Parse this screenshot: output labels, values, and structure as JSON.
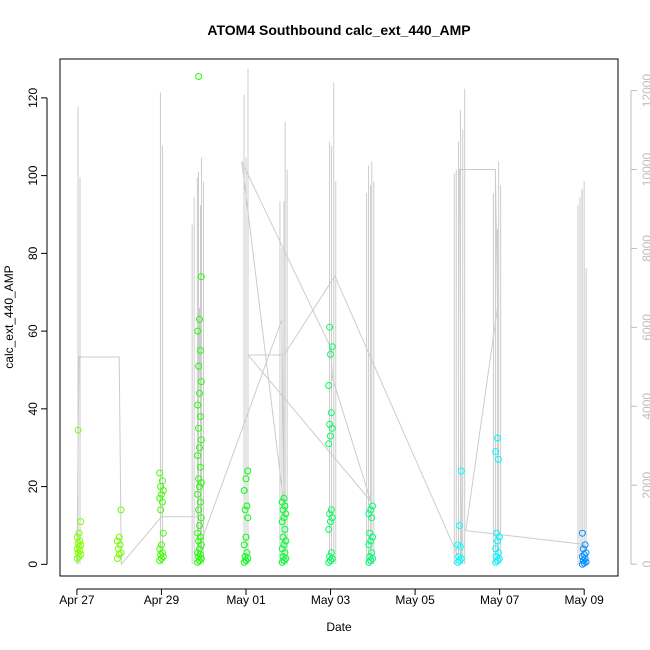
{
  "chart_data": {
    "type": "scatter",
    "title": "ATOM4 Southbound calc_ext_440_AMP",
    "xlabel": "Date",
    "ylabel": "calc_ext_440_AMP",
    "x_ticks": [
      "Apr 27",
      "Apr 29",
      "May 01",
      "May 03",
      "May 05",
      "May 07",
      "May 09"
    ],
    "x_range_days": [
      -0.4,
      12.8
    ],
    "xlim_dates": [
      "2025-04-26",
      "2025-05-10"
    ],
    "ylim": [
      -3,
      130
    ],
    "y_ticks": [
      0,
      20,
      40,
      60,
      80,
      100,
      120
    ],
    "y2lim": [
      -300,
      12800
    ],
    "y2_ticks": [
      0,
      2000,
      4000,
      6000,
      8000,
      10000,
      12000
    ],
    "grid": false,
    "point_color_gradient": [
      "#7fff00",
      "#00ff00",
      "#00ff7f",
      "#00ffff",
      "#007fff"
    ],
    "series": [
      {
        "axis": "left",
        "marker": "open-circle",
        "clusters": [
          {
            "day": 0.05,
            "color": "#80ff00",
            "values": [
              1.5,
              2,
              2.5,
              3,
              3.5,
              4,
              4.5,
              5,
              5.5,
              6,
              7,
              8,
              11,
              34.5
            ]
          },
          {
            "day": 1.0,
            "color": "#70ff00",
            "values": [
              1.5,
              2.5,
              3,
              4,
              5,
              6,
              7,
              14
            ]
          },
          {
            "day": 2.0,
            "color": "#40ff00",
            "values": [
              1,
              1.5,
              2,
              2.5,
              3,
              4,
              5,
              8,
              14,
              16,
              17,
              18,
              19,
              20,
              21.5,
              23.5
            ]
          },
          {
            "day": 2.9,
            "color": "#20ff00",
            "values": [
              0.5,
              1,
              1.5,
              2,
              2.5,
              3,
              4,
              5,
              6,
              7,
              8,
              10,
              12,
              14,
              16,
              18,
              20,
              21,
              22,
              25,
              28,
              30,
              32,
              35,
              38,
              41,
              44,
              47,
              51,
              55,
              60,
              63,
              74,
              125.5
            ]
          },
          {
            "day": 4.0,
            "color": "#00ff10",
            "values": [
              0.5,
              1,
              1.5,
              2,
              3,
              5,
              7,
              12,
              14,
              15,
              19,
              22,
              24
            ]
          },
          {
            "day": 4.9,
            "color": "#00ff30",
            "values": [
              0.5,
              1,
              1.5,
              2,
              3,
              4,
              5,
              6,
              7,
              9,
              11,
              12,
              13,
              14,
              15,
              16,
              17
            ]
          },
          {
            "day": 6.0,
            "color": "#00ff60",
            "values": [
              0.5,
              1,
              1.5,
              2,
              3,
              9,
              11,
              12,
              13,
              14,
              31,
              33,
              35,
              36,
              39,
              46,
              54,
              56,
              61
            ]
          },
          {
            "day": 6.95,
            "color": "#00ff70",
            "values": [
              0.5,
              1,
              1.5,
              2,
              3,
              5,
              6,
              7,
              8,
              12,
              13,
              14,
              15
            ]
          },
          {
            "day": 9.05,
            "color": "#00ffff",
            "values": [
              0.5,
              1,
              1.5,
              2,
              4.5,
              5,
              10,
              24
            ]
          },
          {
            "day": 9.95,
            "color": "#00f8ff",
            "values": [
              0.5,
              1,
              1.5,
              2,
              3,
              4,
              6,
              7,
              8,
              27,
              29,
              32.5
            ]
          },
          {
            "day": 12.0,
            "color": "#0090ff",
            "values": [
              0,
              0.3,
              0.6,
              1,
              1.5,
              2,
              2.5,
              3,
              4,
              5,
              8
            ]
          }
        ]
      },
      {
        "axis": "right",
        "color": "#cccccc",
        "line_trace": [
          [
            0.0,
            0
          ],
          [
            0.05,
            5250
          ],
          [
            1.0,
            5250
          ],
          [
            1.05,
            0
          ],
          [
            2.0,
            1200
          ],
          [
            2.85,
            1200
          ],
          [
            2.9,
            6500
          ],
          [
            2.95,
            600
          ],
          [
            4.85,
            6200
          ],
          [
            4.9,
            1500
          ],
          [
            3.9,
            10200
          ],
          [
            6.0,
            5500
          ],
          [
            6.05,
            4700
          ],
          [
            6.95,
            1600
          ],
          [
            4.05,
            5300
          ],
          [
            4.9,
            5300
          ],
          [
            6.1,
            7300
          ],
          [
            9.1,
            0
          ],
          [
            9.05,
            10000
          ],
          [
            9.9,
            10000
          ],
          [
            9.95,
            6500
          ],
          [
            9.2,
            850
          ],
          [
            12.0,
            500
          ]
        ],
        "spikes": [
          {
            "day": 0.05,
            "peaks": [
              11600,
              9800
            ]
          },
          {
            "day": 2.0,
            "peaks": [
              11950,
              10600
            ]
          },
          {
            "day": 2.75,
            "peaks": [
              8600,
              9300
            ]
          },
          {
            "day": 2.85,
            "peaks": [
              9800
            ]
          },
          {
            "day": 2.9,
            "peaks": [
              9950,
              9100
            ]
          },
          {
            "day": 2.97,
            "peaks": [
              10300,
              9700
            ]
          },
          {
            "day": 4.0,
            "peaks": [
              11900,
              10300,
              12550
            ]
          },
          {
            "day": 4.85,
            "peaks": [
              9200,
              8000,
              9200
            ]
          },
          {
            "day": 4.95,
            "peaks": [
              11200,
              10000
            ]
          },
          {
            "day": 6.0,
            "peaks": [
              10700,
              10600
            ]
          },
          {
            "day": 6.1,
            "peaks": [
              12200,
              9700
            ]
          },
          {
            "day": 6.9,
            "peaks": [
              9400,
              10100,
              9600
            ]
          },
          {
            "day": 7.0,
            "peaks": [
              10200,
              9700
            ]
          },
          {
            "day": 8.95,
            "peaks": [
              9900,
              10000
            ]
          },
          {
            "day": 9.05,
            "peaks": [
              10700,
              11500
            ]
          },
          {
            "day": 9.15,
            "peaks": [
              11000,
              12050
            ]
          },
          {
            "day": 9.9,
            "peaks": [
              9400,
              9800,
              8500
            ]
          },
          {
            "day": 10.0,
            "peaks": [
              10200,
              9600
            ]
          },
          {
            "day": 11.9,
            "peaks": [
              9100,
              9300,
              9500
            ]
          },
          {
            "day": 12.0,
            "peaks": [
              9500,
              9700,
              7500
            ]
          }
        ]
      }
    ]
  }
}
